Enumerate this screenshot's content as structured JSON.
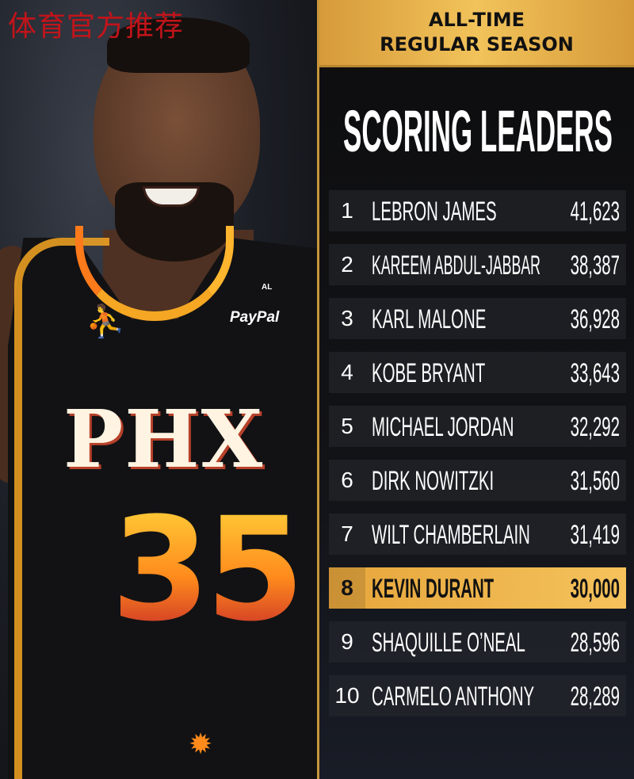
{
  "watermark": "体育官方推荐",
  "photo": {
    "jersey_text": "PHX",
    "jersey_number": "35",
    "sponsor": "PayPal",
    "patch": "AL"
  },
  "header": {
    "line1": "ALL-TIME",
    "line2": "REGULAR SEASON"
  },
  "title": "SCORING LEADERS",
  "accent_color": "#f2c35a",
  "leaders": [
    {
      "rank": "1",
      "name": "LEBRON JAMES",
      "points": "41,623"
    },
    {
      "rank": "2",
      "name": "KAREEM ABDUL-JABBAR",
      "points": "38,387"
    },
    {
      "rank": "3",
      "name": "KARL MALONE",
      "points": "36,928"
    },
    {
      "rank": "4",
      "name": "KOBE BRYANT",
      "points": "33,643"
    },
    {
      "rank": "5",
      "name": "MICHAEL JORDAN",
      "points": "32,292"
    },
    {
      "rank": "6",
      "name": "DIRK NOWITZKI",
      "points": "31,560"
    },
    {
      "rank": "7",
      "name": "WILT CHAMBERLAIN",
      "points": "31,419"
    },
    {
      "rank": "8",
      "name": "KEVIN DURANT",
      "points": "30,000",
      "highlighted": true
    },
    {
      "rank": "9",
      "name": "SHAQUILLE O’NEAL",
      "points": "28,596"
    },
    {
      "rank": "10",
      "name": "CARMELO ANTHONY",
      "points": "28,289"
    }
  ]
}
